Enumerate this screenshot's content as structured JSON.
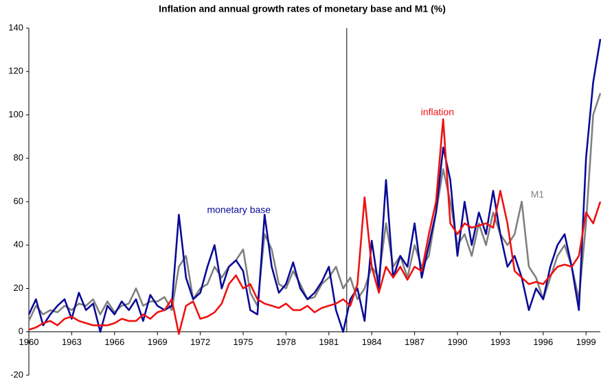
{
  "chart_data": {
    "type": "line",
    "title": "Inflation and annual growth rates of monetary base and M1 (%)",
    "x": [
      1960,
      1960.5,
      1961,
      1961.5,
      1962,
      1962.5,
      1963,
      1963.5,
      1964,
      1964.5,
      1965,
      1965.5,
      1966,
      1966.5,
      1967,
      1967.5,
      1968,
      1968.5,
      1969,
      1969.5,
      1970,
      1970.5,
      1971,
      1971.5,
      1972,
      1972.5,
      1973,
      1973.5,
      1974,
      1974.5,
      1975,
      1975.5,
      1976,
      1976.5,
      1977,
      1977.5,
      1978,
      1978.5,
      1979,
      1979.5,
      1980,
      1980.5,
      1981,
      1981.5,
      1982,
      1982.5,
      1983,
      1983.5,
      1984,
      1984.5,
      1985,
      1985.5,
      1986,
      1986.5,
      1987,
      1987.5,
      1988,
      1988.5,
      1989,
      1989.5,
      1990,
      1990.5,
      1991,
      1991.5,
      1992,
      1992.5,
      1993,
      1993.5,
      1994,
      1994.5,
      1995,
      1995.5,
      1996,
      1996.5,
      1997,
      1997.5,
      1998,
      1998.5,
      1999,
      1999.5,
      2000
    ],
    "series": [
      {
        "name": "M1",
        "color": "#808080",
        "values": [
          5,
          12,
          8,
          10,
          9,
          12,
          10,
          13,
          12,
          15,
          8,
          14,
          9,
          12,
          13,
          20,
          12,
          14,
          14,
          16,
          10,
          30,
          35,
          15,
          20,
          22,
          30,
          25,
          30,
          33,
          38,
          18,
          12,
          45,
          38,
          22,
          20,
          28,
          22,
          15,
          16,
          22,
          25,
          30,
          20,
          25,
          15,
          20,
          30,
          25,
          50,
          30,
          35,
          25,
          40,
          30,
          35,
          55,
          75,
          60,
          40,
          45,
          35,
          50,
          40,
          55,
          45,
          40,
          45,
          60,
          30,
          25,
          15,
          25,
          35,
          40,
          30,
          15,
          50,
          100,
          110
        ]
      },
      {
        "name": "monetary base",
        "color": "#0a0a96",
        "values": [
          8,
          15,
          3,
          8,
          12,
          15,
          6,
          18,
          10,
          13,
          0,
          12,
          8,
          14,
          10,
          15,
          5,
          17,
          12,
          10,
          12,
          54,
          25,
          15,
          18,
          30,
          40,
          20,
          30,
          33,
          28,
          10,
          8,
          54,
          30,
          18,
          22,
          32,
          20,
          15,
          18,
          23,
          30,
          10,
          0,
          15,
          20,
          5,
          42,
          20,
          70,
          25,
          35,
          30,
          50,
          25,
          40,
          55,
          85,
          70,
          35,
          60,
          40,
          55,
          45,
          65,
          45,
          30,
          35,
          25,
          10,
          20,
          15,
          30,
          40,
          45,
          30,
          10,
          80,
          115,
          135
        ]
      },
      {
        "name": "inflation",
        "color": "#ee1111",
        "values": [
          1,
          2,
          4,
          5,
          3,
          6,
          7,
          5,
          4,
          3,
          3,
          3,
          4,
          6,
          5,
          5,
          8,
          6,
          9,
          10,
          15,
          -1,
          12,
          14,
          6,
          7,
          9,
          13,
          22,
          26,
          20,
          22,
          15,
          13,
          12,
          11,
          13,
          10,
          10,
          12,
          9,
          11,
          12,
          13,
          15,
          12,
          22,
          62,
          30,
          18,
          30,
          25,
          30,
          24,
          30,
          28,
          45,
          60,
          98,
          50,
          45,
          50,
          48,
          49,
          50,
          48,
          65,
          50,
          28,
          25,
          22,
          23,
          22,
          26,
          30,
          31,
          30,
          35,
          55,
          50,
          60
        ]
      }
    ],
    "labels": [
      {
        "text": "monetary base",
        "series": 1,
        "x": 1974.7,
        "y": 56
      },
      {
        "text": "inflation",
        "series": 2,
        "x": 1988.6,
        "y": 101
      },
      {
        "text": "M1",
        "series": 0,
        "x": 1995.6,
        "y": 63
      }
    ],
    "vertical_line_x": 1982.25,
    "xlim": [
      1960,
      2000
    ],
    "xticks": [
      1960,
      1963,
      1966,
      1969,
      1972,
      1975,
      1978,
      1981,
      1984,
      1987,
      1990,
      1993,
      1996,
      1999
    ],
    "ylim": [
      -20,
      140
    ],
    "yticks": [
      -20,
      0,
      20,
      40,
      60,
      80,
      100,
      120,
      140
    ]
  }
}
